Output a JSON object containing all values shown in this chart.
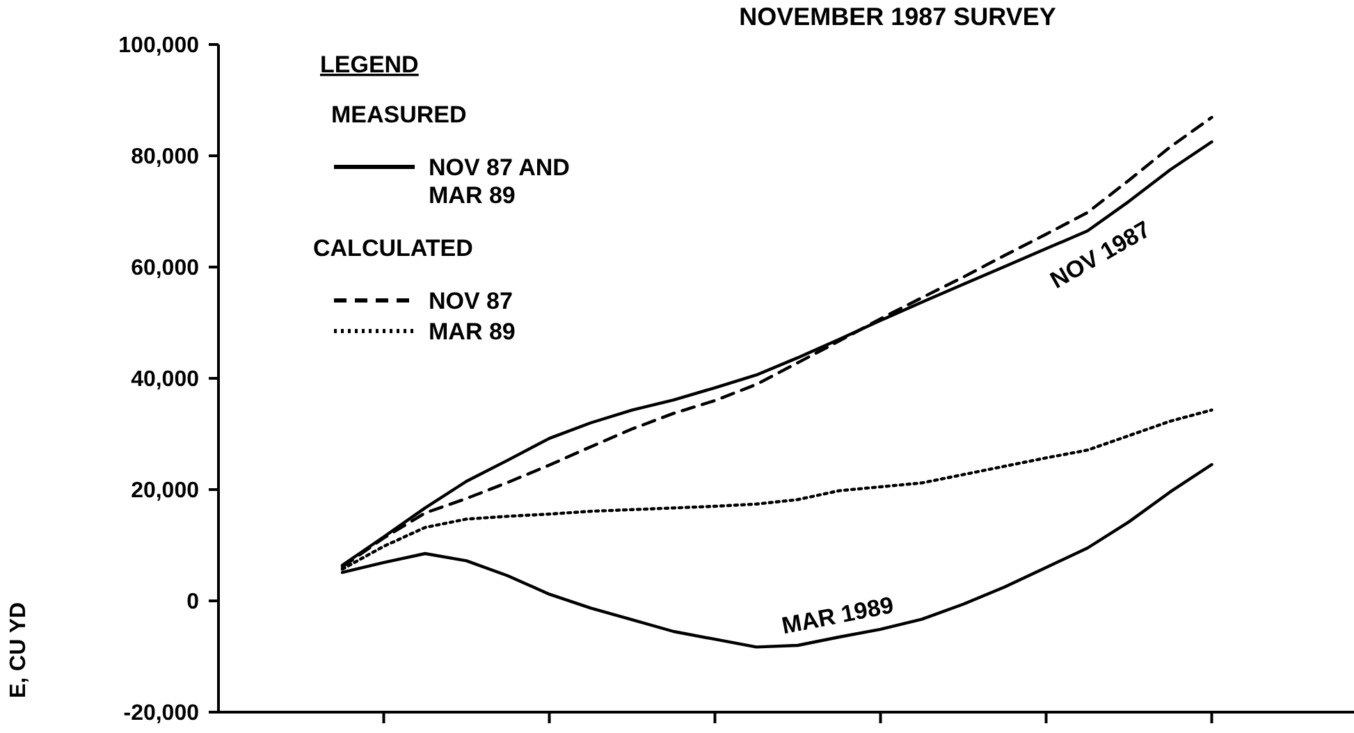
{
  "chart_data": {
    "type": "line",
    "title": "NOVEMBER 1987 SURVEY",
    "ylabel": "E, CU YD",
    "legend_title": "LEGEND",
    "legend": "top left",
    "grid": false,
    "categories": [
      null,
      null,
      null,
      null,
      null,
      null,
      null,
      null,
      null,
      null,
      null,
      null,
      null,
      null,
      null,
      null,
      null,
      null,
      null,
      null,
      null,
      null
    ],
    "ylim": [
      -20000,
      100000
    ],
    "yticks": [
      {
        "value": -20000,
        "label": "-20,000"
      },
      {
        "value": 0,
        "label": "0"
      },
      {
        "value": 20000,
        "label": "20,000"
      },
      {
        "value": 40000,
        "label": "40,000"
      },
      {
        "value": 60000,
        "label": "60,000"
      },
      {
        "value": 80000,
        "label": "80,000"
      },
      {
        "value": 100000,
        "label": "100,000"
      }
    ],
    "annotations": [
      "MEASURED",
      "CALCULATED",
      "NOV 1987",
      "MAR 1989"
    ],
    "series": [
      {
        "name": "NOV 87 AND MAR 89",
        "color": "#000000",
        "line_style": "solid",
        "values": [
          6400,
          11500,
          16700,
          21500,
          25300,
          29200,
          32000,
          34300,
          36100,
          38300,
          40600,
          43700,
          47000,
          50400,
          53700,
          56900,
          60100,
          63300,
          66500,
          71800,
          77500,
          82500
        ]
      },
      {
        "color": "#000000",
        "line_style": "solid",
        "values": [
          5100,
          6900,
          8500,
          7200,
          4500,
          1200,
          -1300,
          -3400,
          -5500,
          -6900,
          -8300,
          -8000,
          -6500,
          -5100,
          -3300,
          -600,
          2500,
          6000,
          9500,
          14200,
          19600,
          24500
        ]
      },
      {
        "name": "NOV 87",
        "color": "#000000",
        "line_style": "dashed",
        "values": [
          6100,
          11300,
          15800,
          18400,
          21300,
          24400,
          27700,
          30900,
          33700,
          36000,
          38900,
          42800,
          46700,
          50700,
          54500,
          58200,
          62100,
          65900,
          69800,
          75600,
          81600,
          86900
        ]
      },
      {
        "name": "MAR 89",
        "color": "#000000",
        "line_style": "dotted",
        "values": [
          5700,
          9800,
          13200,
          14700,
          15200,
          15600,
          16100,
          16400,
          16700,
          17000,
          17400,
          18200,
          19800,
          20500,
          21200,
          22700,
          24200,
          25700,
          27100,
          29700,
          32300,
          34300
        ]
      }
    ]
  }
}
